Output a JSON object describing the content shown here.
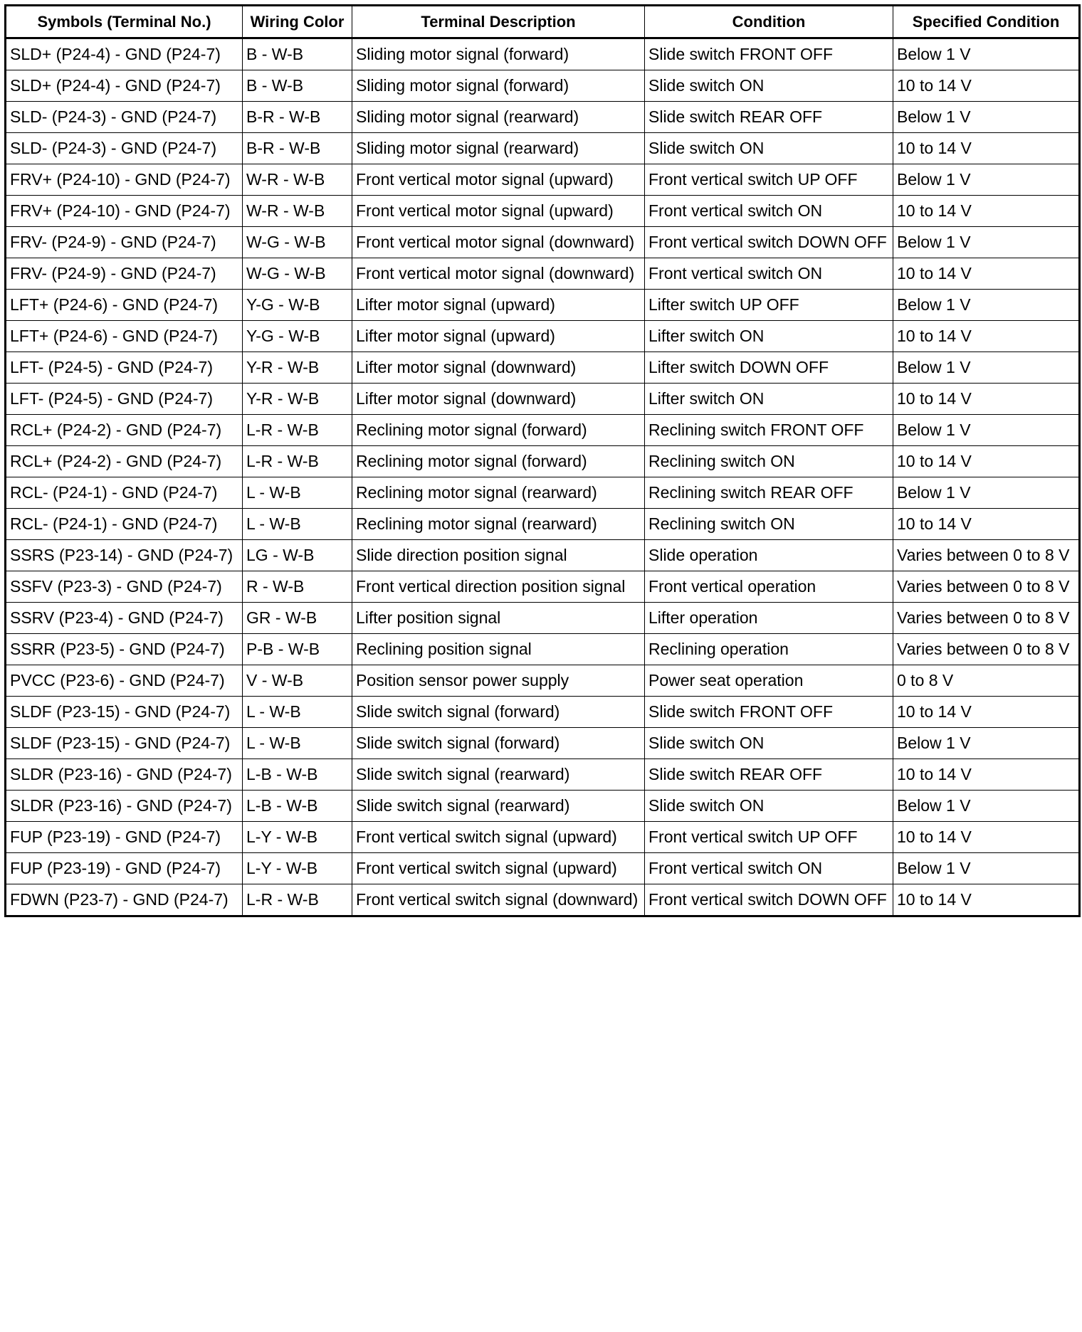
{
  "headers": [
    "Symbols (Terminal No.)",
    "Wiring Color",
    "Terminal Description",
    "Condition",
    "Specified Condition"
  ],
  "rows": [
    [
      "SLD+ (P24-4) - GND (P24-7)",
      "B - W-B",
      "Sliding motor signal (forward)",
      "Slide switch FRONT OFF",
      "Below 1 V"
    ],
    [
      "SLD+ (P24-4) - GND (P24-7)",
      "B - W-B",
      "Sliding motor signal (forward)",
      "Slide switch ON",
      "10 to 14 V"
    ],
    [
      "SLD- (P24-3) - GND (P24-7)",
      "B-R - W-B",
      "Sliding motor signal (rearward)",
      "Slide switch REAR OFF",
      "Below 1 V"
    ],
    [
      "SLD- (P24-3) - GND (P24-7)",
      "B-R - W-B",
      "Sliding motor signal (rearward)",
      "Slide switch ON",
      "10 to 14 V"
    ],
    [
      "FRV+ (P24-10) - GND (P24-7)",
      "W-R - W-B",
      "Front vertical motor signal (upward)",
      "Front vertical switch UP OFF",
      "Below 1 V"
    ],
    [
      "FRV+ (P24-10) - GND (P24-7)",
      "W-R - W-B",
      "Front vertical motor signal (upward)",
      "Front vertical switch ON",
      "10 to 14 V"
    ],
    [
      "FRV- (P24-9) - GND (P24-7)",
      "W-G - W-B",
      "Front vertical motor signal (downward)",
      "Front vertical switch DOWN OFF",
      "Below 1 V"
    ],
    [
      "FRV- (P24-9) - GND (P24-7)",
      "W-G - W-B",
      "Front vertical motor signal (downward)",
      "Front vertical switch ON",
      "10 to 14 V"
    ],
    [
      "LFT+ (P24-6) - GND (P24-7)",
      "Y-G - W-B",
      "Lifter motor signal (upward)",
      "Lifter switch UP OFF",
      "Below 1 V"
    ],
    [
      "LFT+ (P24-6) - GND (P24-7)",
      "Y-G - W-B",
      "Lifter motor signal (upward)",
      "Lifter switch ON",
      "10 to 14 V"
    ],
    [
      "LFT- (P24-5) - GND (P24-7)",
      "Y-R - W-B",
      "Lifter motor signal (downward)",
      "Lifter switch DOWN OFF",
      "Below 1 V"
    ],
    [
      "LFT- (P24-5) - GND (P24-7)",
      "Y-R - W-B",
      "Lifter motor signal (downward)",
      "Lifter switch ON",
      "10 to 14 V"
    ],
    [
      "RCL+ (P24-2) - GND (P24-7)",
      "L-R - W-B",
      "Reclining motor signal (forward)",
      "Reclining switch FRONT OFF",
      "Below 1 V"
    ],
    [
      "RCL+ (P24-2) - GND (P24-7)",
      "L-R - W-B",
      "Reclining motor signal (forward)",
      "Reclining switch ON",
      "10 to 14 V"
    ],
    [
      "RCL- (P24-1) - GND (P24-7)",
      "L - W-B",
      "Reclining motor signal (rearward)",
      "Reclining switch REAR OFF",
      "Below 1 V"
    ],
    [
      "RCL- (P24-1) - GND (P24-7)",
      "L - W-B",
      "Reclining motor signal (rearward)",
      "Reclining switch ON",
      "10 to 14 V"
    ],
    [
      "SSRS (P23-14) - GND (P24-7)",
      "LG - W-B",
      "Slide direction position signal",
      "Slide operation",
      "Varies between 0 to 8 V"
    ],
    [
      "SSFV (P23-3) - GND (P24-7)",
      "R - W-B",
      "Front vertical direction position signal",
      "Front vertical operation",
      "Varies between 0 to 8 V"
    ],
    [
      "SSRV (P23-4) - GND (P24-7)",
      "GR - W-B",
      "Lifter position signal",
      "Lifter operation",
      "Varies between 0 to 8 V"
    ],
    [
      "SSRR (P23-5) - GND (P24-7)",
      "P-B - W-B",
      "Reclining position signal",
      "Reclining operation",
      "Varies between 0 to 8 V"
    ],
    [
      "PVCC (P23-6) - GND (P24-7)",
      "V - W-B",
      "Position sensor power supply",
      "Power seat operation",
      "0 to 8 V"
    ],
    [
      "SLDF (P23-15) - GND (P24-7)",
      "L - W-B",
      "Slide switch signal (forward)",
      "Slide switch FRONT OFF",
      "10 to 14 V"
    ],
    [
      "SLDF (P23-15) - GND (P24-7)",
      "L - W-B",
      "Slide switch signal (forward)",
      "Slide switch ON",
      "Below 1 V"
    ],
    [
      "SLDR (P23-16) - GND (P24-7)",
      "L-B - W-B",
      "Slide switch signal (rearward)",
      "Slide switch REAR OFF",
      "10 to 14 V"
    ],
    [
      "SLDR (P23-16) - GND (P24-7)",
      "L-B - W-B",
      "Slide switch signal (rearward)",
      "Slide switch ON",
      "Below 1 V"
    ],
    [
      "FUP (P23-19) - GND (P24-7)",
      "L-Y - W-B",
      "Front vertical switch signal (upward)",
      "Front vertical switch UP OFF",
      "10 to 14 V"
    ],
    [
      "FUP (P23-19) - GND (P24-7)",
      "L-Y - W-B",
      "Front vertical switch signal (upward)",
      "Front vertical switch ON",
      "Below 1 V"
    ],
    [
      "FDWN (P23-7) - GND (P24-7)",
      "L-R - W-B",
      "Front vertical switch signal (downward)",
      "Front vertical switch DOWN OFF",
      "10 to 14 V"
    ]
  ]
}
